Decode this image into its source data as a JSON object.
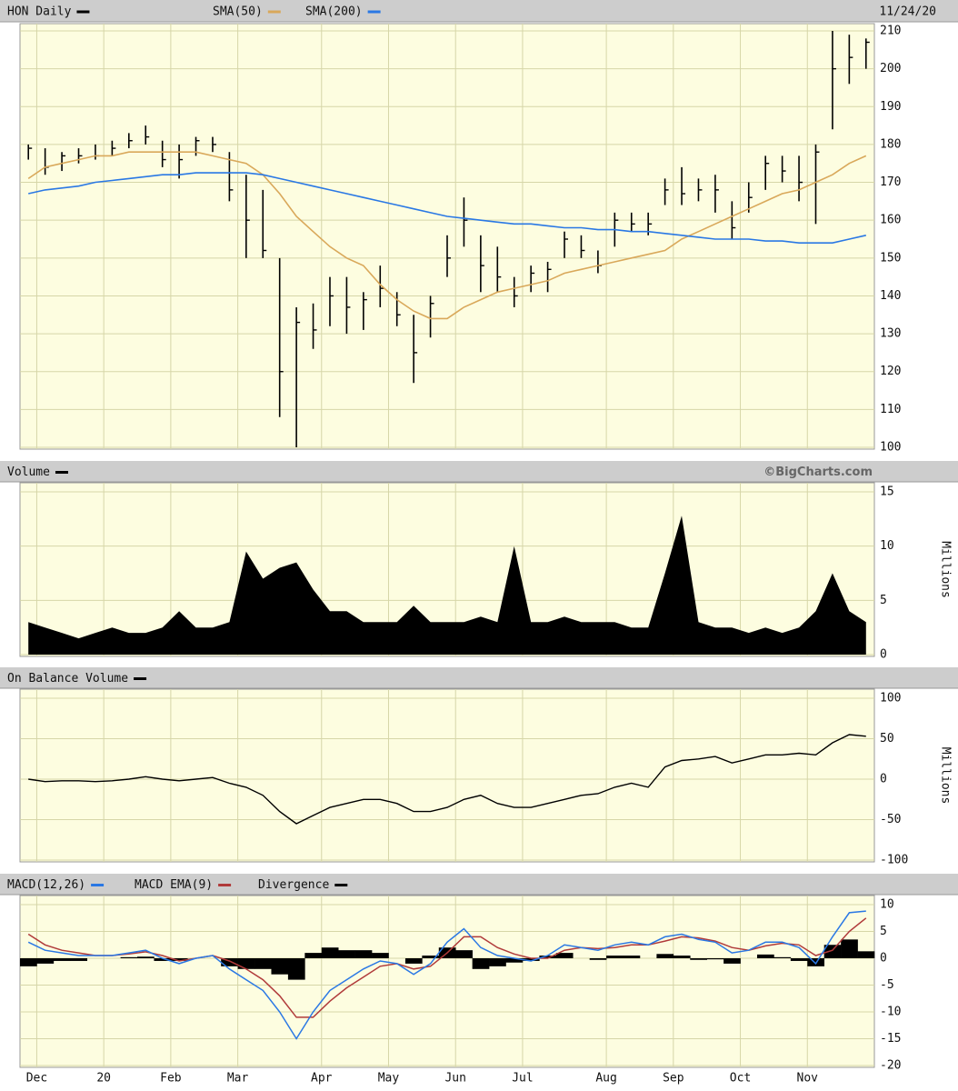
{
  "chart_data": [
    {
      "type": "hlc",
      "date": "11/24/20",
      "ylim": [
        100,
        210
      ],
      "yticks": [
        100,
        110,
        120,
        130,
        140,
        150,
        160,
        170,
        180,
        190,
        200,
        210
      ],
      "series": [
        {
          "name": "HON Daily",
          "color": "#000000",
          "high": [
            180,
            179,
            178,
            179,
            180,
            181,
            183,
            185,
            181,
            180,
            182,
            182,
            178,
            172,
            168,
            150,
            137,
            138,
            145,
            145,
            141,
            148,
            141,
            135,
            140,
            156,
            166,
            156,
            153,
            145,
            148,
            149,
            157,
            156,
            152,
            162,
            162,
            162,
            171,
            174,
            171,
            172,
            165,
            170,
            177,
            177,
            177,
            180,
            210,
            209,
            208
          ],
          "low": [
            176,
            172,
            173,
            175,
            176,
            177,
            179,
            180,
            174,
            171,
            177,
            178,
            165,
            150,
            150,
            108,
            100,
            126,
            132,
            130,
            131,
            137,
            132,
            117,
            129,
            145,
            153,
            141,
            141,
            137,
            141,
            141,
            150,
            150,
            146,
            153,
            157,
            156,
            164,
            164,
            165,
            162,
            155,
            162,
            168,
            170,
            165,
            159,
            184,
            196,
            200
          ],
          "close": [
            179,
            174,
            177,
            177,
            177,
            179,
            181,
            182,
            176,
            176,
            181,
            180,
            168,
            160,
            152,
            120,
            133,
            131,
            140,
            137,
            139,
            142,
            135,
            125,
            138,
            150,
            160,
            148,
            145,
            140,
            146,
            147,
            155,
            152,
            148,
            160,
            159,
            159,
            168,
            167,
            168,
            168,
            158,
            166,
            175,
            173,
            170,
            178,
            200,
            203,
            207
          ]
        },
        {
          "name": "SMA(50)",
          "color": "#d9a85a",
          "values": [
            171,
            174,
            175,
            176,
            177,
            177,
            178,
            178,
            178,
            178,
            178,
            177,
            176,
            175,
            172,
            167,
            161,
            157,
            153,
            150,
            148,
            143,
            139,
            136,
            134,
            134,
            137,
            139,
            141,
            142,
            143,
            144,
            146,
            147,
            148,
            149,
            150,
            151,
            152,
            155,
            157,
            159,
            161,
            163,
            165,
            167,
            168,
            170,
            172,
            175,
            177
          ]
        },
        {
          "name": "SMA(200)",
          "color": "#2a78e4",
          "values": [
            167,
            168,
            168.5,
            169,
            170,
            170.5,
            171,
            171.5,
            172,
            172,
            172.5,
            172.5,
            172.5,
            172.5,
            172,
            171,
            170,
            169,
            168,
            167,
            166,
            165,
            164,
            163,
            162,
            161,
            160.5,
            160,
            159.5,
            159,
            159,
            158.5,
            158,
            158,
            157.5,
            157.5,
            157,
            157,
            156.5,
            156,
            155.5,
            155,
            155,
            155,
            154.5,
            154.5,
            154,
            154,
            154,
            155,
            156
          ]
        }
      ]
    },
    {
      "type": "area",
      "note": "©BigCharts.com",
      "y_label": "Millions",
      "ylim": [
        0,
        15
      ],
      "yticks": [
        0,
        5,
        10,
        15
      ],
      "series": [
        {
          "name": "Volume",
          "color": "#000000",
          "values": [
            3,
            2.5,
            2,
            1.5,
            2,
            2.5,
            2,
            2,
            2.5,
            4,
            2.5,
            2.5,
            3,
            9.5,
            7,
            8,
            8.5,
            6,
            4,
            4,
            3,
            3,
            3,
            4.5,
            3,
            3,
            3,
            3.5,
            3,
            10,
            3,
            3,
            3.5,
            3,
            3,
            3,
            2.5,
            2.5,
            7.5,
            12.8,
            3,
            2.5,
            2.5,
            2,
            2.5,
            2,
            2.5,
            4,
            7.5,
            4,
            3
          ]
        }
      ]
    },
    {
      "type": "line",
      "y_label": "Millions",
      "ylim": [
        -100,
        100
      ],
      "yticks": [
        -100,
        -50,
        0,
        50,
        100
      ],
      "series": [
        {
          "name": "On Balance Volume",
          "color": "#000000",
          "values": [
            0,
            -3,
            -2,
            -2,
            -3,
            -2,
            0,
            3,
            0,
            -2,
            0,
            2,
            -5,
            -10,
            -20,
            -40,
            -55,
            -45,
            -35,
            -30,
            -25,
            -25,
            -30,
            -40,
            -40,
            -35,
            -25,
            -20,
            -30,
            -35,
            -35,
            -30,
            -25,
            -20,
            -18,
            -10,
            -5,
            -10,
            15,
            23,
            25,
            28,
            20,
            25,
            30,
            30,
            32,
            30,
            45,
            55,
            53
          ]
        }
      ]
    },
    {
      "type": "macd",
      "ylim": [
        -20,
        10
      ],
      "yticks": [
        -20,
        -15,
        -10,
        -5,
        0,
        5,
        10
      ],
      "categories": [
        null,
        "Dec",
        null,
        null,
        null,
        "20",
        null,
        null,
        null,
        "Feb",
        null,
        null,
        null,
        "Mar",
        null,
        null,
        null,
        null,
        "Apr",
        null,
        null,
        null,
        "May",
        null,
        null,
        null,
        "Jun",
        null,
        null,
        null,
        "Jul",
        null,
        null,
        null,
        null,
        "Aug",
        null,
        null,
        null,
        "Sep",
        null,
        null,
        null,
        "Oct",
        null,
        null,
        null,
        "Nov",
        null,
        null,
        null
      ],
      "series": [
        {
          "name": "MACD(12,26)",
          "color": "#2a78e4",
          "values": [
            3,
            1.5,
            1,
            0.5,
            0.5,
            0.5,
            1,
            1.5,
            0,
            -1,
            0,
            0.5,
            -2,
            -4,
            -6,
            -10,
            -15,
            -10,
            -6,
            -4,
            -2,
            -0.5,
            -1,
            -3,
            -1,
            3,
            5.5,
            2,
            0.5,
            0,
            -0.5,
            0.5,
            2.5,
            2,
            1.5,
            2.5,
            3,
            2.5,
            4,
            4.5,
            3.5,
            3,
            1,
            1.5,
            3,
            3,
            2,
            -1,
            4,
            8.5,
            8.8
          ]
        },
        {
          "name": "MACD EMA(9)",
          "color": "#b03a3a",
          "values": [
            4.5,
            2.5,
            1.5,
            1,
            0.5,
            0.5,
            0.8,
            1.2,
            0.5,
            -0.5,
            0,
            0.5,
            -0.5,
            -2,
            -4,
            -7,
            -11,
            -11,
            -8,
            -5.5,
            -3.5,
            -1.5,
            -1,
            -2,
            -1.5,
            1,
            4,
            4,
            2,
            0.8,
            0,
            0,
            1.5,
            2,
            1.8,
            2,
            2.5,
            2.5,
            3.2,
            4,
            3.8,
            3.2,
            2,
            1.5,
            2.3,
            2.8,
            2.5,
            0.5,
            1.5,
            5,
            7.5
          ]
        },
        {
          "name": "Divergence",
          "color": "#000000",
          "values": [
            -1.5,
            -1,
            -0.5,
            -0.5,
            0,
            0,
            0.2,
            0.3,
            -0.5,
            -0.5,
            0,
            0,
            -1.5,
            -2,
            -2,
            -3,
            -4,
            1,
            2,
            1.5,
            1.5,
            1,
            0,
            -1,
            0.5,
            2,
            1.5,
            -2,
            -1.5,
            -0.8,
            -0.5,
            0.5,
            1,
            0,
            -0.3,
            0.5,
            0.5,
            0,
            0.8,
            0.5,
            -0.3,
            -0.2,
            -1,
            0,
            0.7,
            0.2,
            -0.5,
            -1.5,
            2.5,
            3.5,
            1.3
          ]
        }
      ]
    }
  ]
}
